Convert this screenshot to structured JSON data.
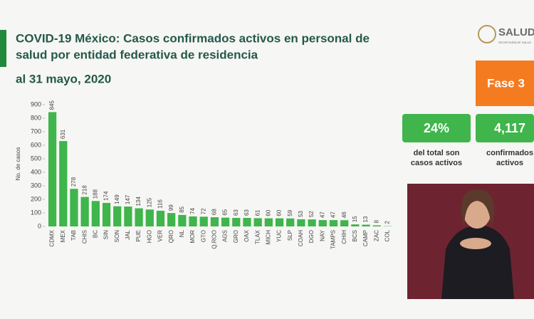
{
  "chart_data": {
    "type": "bar",
    "title": [
      "COVID-19 México: Casos confirmados activos en personal de",
      "salud por entidad federativa de residencia"
    ],
    "subtitle": "al 31 mayo, 2020",
    "y_label": "No. de casos",
    "categories": [
      "CDMX",
      "MEX",
      "TAB",
      "CHIS",
      "BC",
      "SIN",
      "SON",
      "JAL",
      "PUE",
      "HGO",
      "VER",
      "QRO",
      "NL",
      "MOR",
      "GTO",
      "Q.ROO",
      "AGS",
      "GRO",
      "OAX",
      "TLAX",
      "MICH",
      "YUC",
      "SLP",
      "COAH",
      "DGO",
      "NAY",
      "TAMPS",
      "CHIH",
      "BCS",
      "CAMP",
      "ZAC",
      "COL"
    ],
    "values": [
      845,
      631,
      278,
      218,
      188,
      174,
      149,
      147,
      134,
      125,
      116,
      99,
      85,
      74,
      72,
      68,
      65,
      63,
      63,
      61,
      60,
      60,
      59,
      53,
      52,
      47,
      47,
      46,
      15,
      13,
      8,
      2
    ],
    "color": "#3fb54c",
    "ylim": [
      0,
      900
    ],
    "yticks": [
      0,
      100,
      200,
      300,
      400,
      500,
      600,
      700,
      800,
      900
    ]
  },
  "logo": {
    "name": "SALUD",
    "sub": "SECRETARÍA DE SALUD"
  },
  "phase": "Fase 3",
  "stats": [
    {
      "value": "24%",
      "lines": [
        "del total son",
        "casos activos"
      ]
    },
    {
      "value": "4,117",
      "lines": [
        "confirmados",
        "activos"
      ]
    }
  ]
}
